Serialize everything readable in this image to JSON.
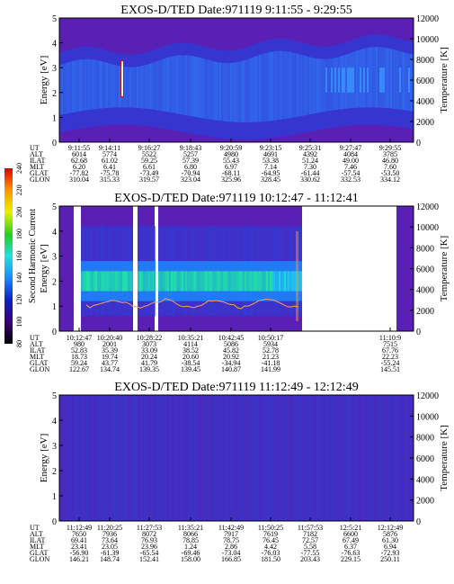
{
  "chart_data": [
    {
      "type": "heatmap",
      "title": "EXOS-D/TED   Date:971119   9:11:55 - 9:29:55",
      "ylabel": "Energy [eV]",
      "y2label": "Temperature [K]",
      "ylim": [
        0,
        5
      ],
      "y2lim": [
        0,
        12000
      ],
      "yticks": [
        "0",
        "1",
        "2",
        "3",
        "4",
        "5"
      ],
      "y2ticks": [
        "0",
        "2000",
        "4000",
        "6000",
        "8000",
        "10000",
        "12000"
      ],
      "row_labels": [
        "UT",
        "ALT",
        "ILAT",
        "MLT",
        "GLAT",
        "GLON"
      ],
      "columns": [
        [
          "9:11:55",
          "6014",
          "62.68",
          "6.20",
          "-77.82",
          "310.04"
        ],
        [
          "9:14:11",
          "5774",
          "61.02",
          "6.41",
          "-75.78",
          "315.33"
        ],
        [
          "9:16:27",
          "5522",
          "59.25",
          "6.61",
          "-73.49",
          "319.57"
        ],
        [
          "9:18:43",
          "5257",
          "57.39",
          "6.80",
          "-70.94",
          "323.04"
        ],
        [
          "9:20:59",
          "4980",
          "55.43",
          "6.97",
          "-68.11",
          "325.96"
        ],
        [
          "9:23:15",
          "4691",
          "53.38",
          "7.14",
          "-64.95",
          "328.45"
        ],
        [
          "9:25:31",
          "4392",
          "51.24",
          "7.30",
          "-61.44",
          "330.62"
        ],
        [
          "9:27:47",
          "4084",
          "49.00",
          "7.46",
          "-57.54",
          "332.53"
        ],
        [
          "9:29:55",
          "3785",
          "46.80",
          "7.60",
          "-53.50",
          "334.12"
        ]
      ]
    },
    {
      "type": "heatmap",
      "title": "EXOS-D/TED   Date:971119   10:12:47 - 11:12:41",
      "ylabel": "Energy [eV]",
      "y2label": "Temperature [K]",
      "ylim": [
        0,
        5
      ],
      "y2lim": [
        0,
        12000
      ],
      "yticks": [
        "0",
        "1",
        "2",
        "3",
        "4",
        "5"
      ],
      "y2ticks": [
        "0",
        "2000",
        "4000",
        "6000",
        "8000",
        "10000",
        "12000"
      ],
      "row_labels": [
        "UT",
        "ALT",
        "ILAT",
        "MLT",
        "GLAT",
        "GLON"
      ],
      "columns": [
        [
          "10:12:47",
          "980",
          "52.83",
          "18.73",
          "59.24",
          "122.67"
        ],
        [
          "10:20:40",
          "2001",
          "35.39",
          "19.74",
          "43.77",
          "134.74"
        ],
        [
          "10:28:22",
          "3073",
          "33.09",
          "20.24",
          "41.79",
          "139.35"
        ],
        [
          "10:35:21",
          "4114",
          "38.52",
          "20.60",
          "-38.54",
          "139.45"
        ],
        [
          "10:42:45",
          "5086",
          "45.82",
          "20.92",
          "-34.94",
          "140.87"
        ],
        [
          "10:50:17",
          "5934",
          "52.78",
          "21.23",
          "-41.18",
          "141.99"
        ],
        [
          "",
          "",
          "",
          "",
          "",
          ""
        ],
        [
          "",
          "",
          "",
          "",
          "",
          ""
        ],
        [
          "11:10:9",
          "7515",
          "67.76",
          "22.23",
          "-55.24",
          "145.51"
        ]
      ],
      "colorbar": {
        "label": "Second Harmonic Current",
        "ticks": [
          "80",
          "100",
          "120",
          "140",
          "160",
          "180",
          "200",
          "220",
          "240"
        ]
      }
    },
    {
      "type": "heatmap",
      "title": "EXOS-D/TED   Date:971119   11:12:49 - 12:12:49",
      "ylabel": "Energy [eV]",
      "y2label": "Temperature [K]",
      "ylim": [
        0,
        5
      ],
      "y2lim": [
        0,
        12000
      ],
      "yticks": [
        "0",
        "1",
        "2",
        "3",
        "4",
        "5"
      ],
      "y2ticks": [
        "0",
        "2000",
        "4000",
        "6000",
        "8000",
        "10000",
        "12000"
      ],
      "row_labels": [
        "UT",
        "ALT",
        "ILAT",
        "MLT",
        "GLAT",
        "GLON"
      ],
      "columns": [
        [
          "11:12:49",
          "7650",
          "69.41",
          "23.41",
          "-56.90",
          "146.21"
        ],
        [
          "11:20:25",
          "7936",
          "73.64",
          "23.05",
          "-61.39",
          "148.74"
        ],
        [
          "11:27:53",
          "8072",
          "76.93",
          "23.96",
          "-65.54",
          "152.41"
        ],
        [
          "11:35:21",
          "8066",
          "78.85",
          "1.24",
          "-69.46",
          "158.00"
        ],
        [
          "11:42:49",
          "7917",
          "78.75",
          "2.86",
          "-73.04",
          "166.85"
        ],
        [
          "11:50:25",
          "7619",
          "76.45",
          "4.42",
          "-76.03",
          "181.50"
        ],
        [
          "11:57:53",
          "7182",
          "72.57",
          "5.58",
          "-77.55",
          "203.43"
        ],
        [
          "12:5:21",
          "6600",
          "67.49",
          "6.37",
          "-76.63",
          "229.15"
        ],
        [
          "12:12:49",
          "5876",
          "61.30",
          "6.94",
          "-72.93",
          "250.11"
        ]
      ]
    }
  ]
}
